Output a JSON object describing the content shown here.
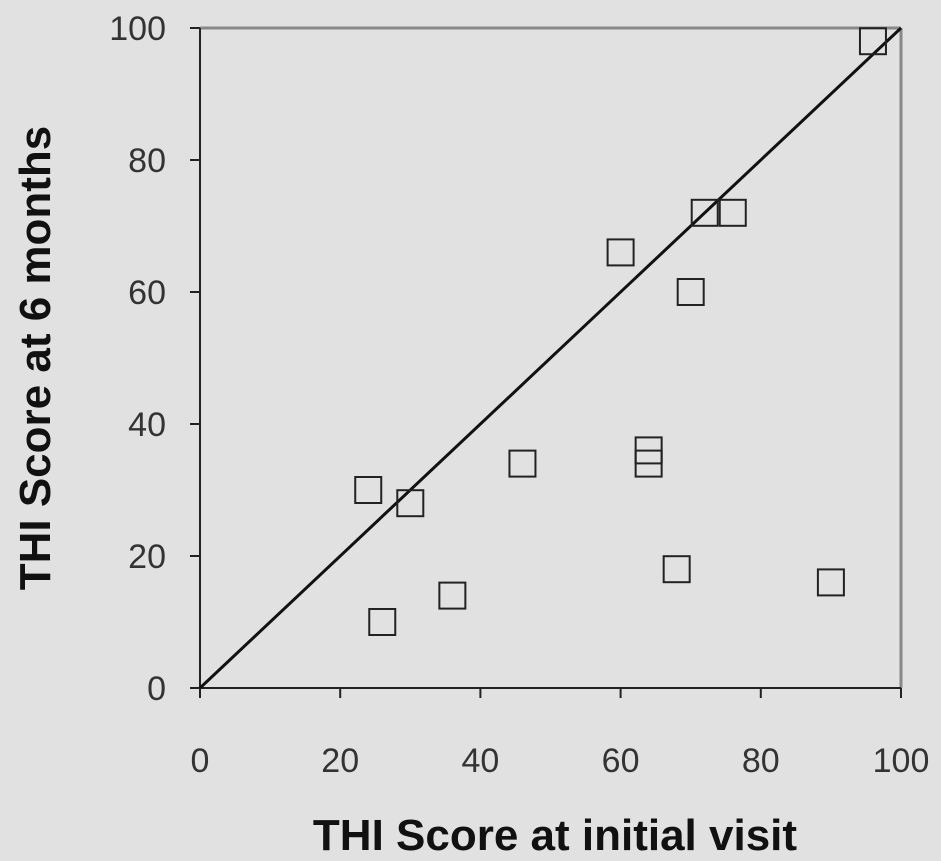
{
  "chart_data": {
    "type": "scatter",
    "xlabel": "THI Score at initial visit",
    "ylabel": "THI Score at 6 months",
    "xlim": [
      0,
      100
    ],
    "ylim": [
      0,
      100
    ],
    "xticks": [
      0,
      20,
      40,
      60,
      80,
      100
    ],
    "yticks": [
      0,
      20,
      40,
      60,
      80,
      100
    ],
    "x_tick_labels": [
      "0",
      "20",
      "40",
      "60",
      "80",
      "100"
    ],
    "y_tick_labels": [
      "0",
      "20",
      "40",
      "60",
      "80",
      "100"
    ],
    "grid": false,
    "legend": "none",
    "marker": "open-square",
    "reference_line": {
      "from": [
        0,
        0
      ],
      "to": [
        100,
        100
      ]
    },
    "points": [
      {
        "x": 24,
        "y": 30
      },
      {
        "x": 26,
        "y": 10
      },
      {
        "x": 30,
        "y": 28
      },
      {
        "x": 36,
        "y": 14
      },
      {
        "x": 46,
        "y": 34
      },
      {
        "x": 60,
        "y": 66
      },
      {
        "x": 64,
        "y": 36
      },
      {
        "x": 64,
        "y": 34
      },
      {
        "x": 68,
        "y": 18
      },
      {
        "x": 70,
        "y": 60
      },
      {
        "x": 72,
        "y": 72
      },
      {
        "x": 76,
        "y": 72
      },
      {
        "x": 90,
        "y": 16
      },
      {
        "x": 96,
        "y": 98
      }
    ],
    "colors": {
      "background": "#e1e1e1",
      "frame": "#888888",
      "axis": "#222222",
      "marker": "#222222",
      "line": "#111111"
    }
  }
}
